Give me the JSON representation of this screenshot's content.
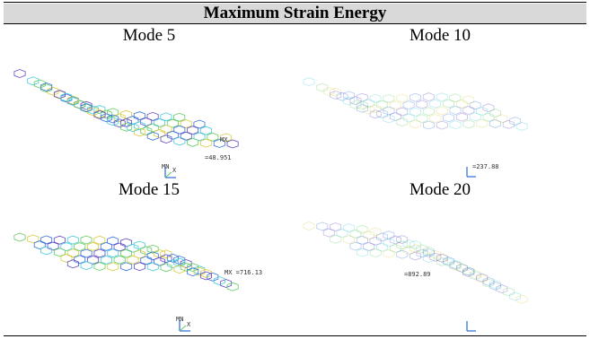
{
  "table": {
    "title": "Maximum Strain Energy",
    "cells": [
      {
        "label": "Mode 5",
        "mx_label": "MX",
        "mn_label": "MN",
        "axis_x": "X",
        "value_label": "=48.951",
        "style": "colored"
      },
      {
        "label": "Mode 10",
        "mx_label": "",
        "mn_label": "",
        "axis_x": "",
        "value_label": "=237.88",
        "style": "faint"
      },
      {
        "label": "Mode 15",
        "mx_label": "",
        "mn_label": "MN",
        "axis_x": "X",
        "value_label": "MX =716.13",
        "style": "colored"
      },
      {
        "label": "Mode 20",
        "mx_label": "",
        "mn_label": "",
        "axis_x": "",
        "value_label": "=892.89",
        "style": "faint"
      }
    ],
    "colors": {
      "title_bg": "#d9d9d9",
      "purple": "#5a3fc0",
      "cyan": "#3cc8d8",
      "green": "#5ac85a",
      "yellow": "#d8c838",
      "blue": "#2a6ad8"
    }
  }
}
